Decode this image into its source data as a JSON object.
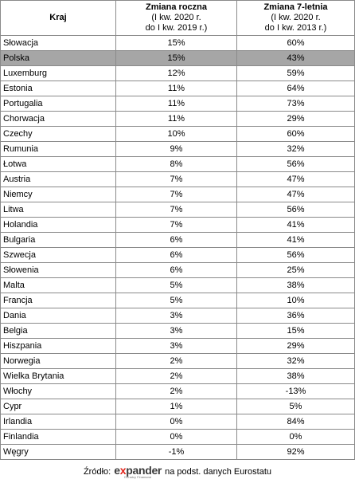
{
  "table": {
    "headers": {
      "country": "Kraj",
      "annual_title": "Zmiana roczna",
      "annual_sub1": "(I kw. 2020 r.",
      "annual_sub2": "do I kw. 2019 r.)",
      "seven_title": "Zmiana 7-letnia",
      "seven_sub1": "(I kw. 2020 r.",
      "seven_sub2": "do I kw. 2013 r.)"
    },
    "rows": [
      {
        "country": "Słowacja",
        "annual": "15%",
        "seven": "60%"
      },
      {
        "country": "Polska",
        "annual": "15%",
        "seven": "43%",
        "highlight": true
      },
      {
        "country": "Luxemburg",
        "annual": "12%",
        "seven": "59%"
      },
      {
        "country": "Estonia",
        "annual": "11%",
        "seven": "64%"
      },
      {
        "country": "Portugalia",
        "annual": "11%",
        "seven": "73%"
      },
      {
        "country": "Chorwacja",
        "annual": "11%",
        "seven": "29%"
      },
      {
        "country": "Czechy",
        "annual": "10%",
        "seven": "60%"
      },
      {
        "country": "Rumunia",
        "annual": "9%",
        "seven": "32%"
      },
      {
        "country": "Łotwa",
        "annual": "8%",
        "seven": "56%"
      },
      {
        "country": "Austria",
        "annual": "7%",
        "seven": "47%"
      },
      {
        "country": "Niemcy",
        "annual": "7%",
        "seven": "47%"
      },
      {
        "country": "Litwa",
        "annual": "7%",
        "seven": "56%"
      },
      {
        "country": "Holandia",
        "annual": "7%",
        "seven": "41%"
      },
      {
        "country": "Bulgaria",
        "annual": "6%",
        "seven": "41%"
      },
      {
        "country": "Szwecja",
        "annual": "6%",
        "seven": "56%"
      },
      {
        "country": "Słowenia",
        "annual": "6%",
        "seven": "25%"
      },
      {
        "country": "Malta",
        "annual": "5%",
        "seven": "38%"
      },
      {
        "country": "Francja",
        "annual": "5%",
        "seven": "10%"
      },
      {
        "country": "Dania",
        "annual": "3%",
        "seven": "36%"
      },
      {
        "country": "Belgia",
        "annual": "3%",
        "seven": "15%"
      },
      {
        "country": "Hiszpania",
        "annual": "3%",
        "seven": "29%"
      },
      {
        "country": "Norwegia",
        "annual": "2%",
        "seven": "32%"
      },
      {
        "country": "Wielka Brytania",
        "annual": "2%",
        "seven": "38%"
      },
      {
        "country": "Włochy",
        "annual": "2%",
        "seven": "-13%"
      },
      {
        "country": "Cypr",
        "annual": "1%",
        "seven": "5%"
      },
      {
        "country": "Irlandia",
        "annual": "0%",
        "seven": "84%"
      },
      {
        "country": "Finlandia",
        "annual": "0%",
        "seven": "0%"
      },
      {
        "country": "Węgry",
        "annual": "-1%",
        "seven": "92%"
      }
    ],
    "highlight_color": "#a6a6a6"
  },
  "source": {
    "prefix": "Źródło:",
    "logo_e": "e",
    "logo_x": "x",
    "logo_rest": "pander",
    "logo_tagline": "Doradcy Finansowi",
    "suffix": "na podst. danych Eurostatu",
    "logo_accent": "#e2231a"
  }
}
